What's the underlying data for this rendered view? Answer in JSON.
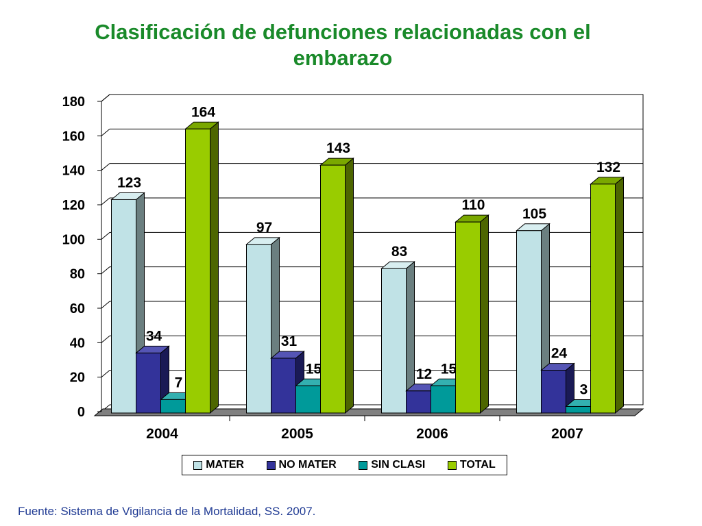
{
  "title_line1": "Clasificación de defunciones relacionadas con el",
  "title_line2": "embarazo",
  "source": "Fuente: Sistema de Vigilancia de la Mortalidad, SS. 2007.",
  "chart_data": {
    "type": "bar",
    "categories": [
      "2004",
      "2005",
      "2006",
      "2007"
    ],
    "series": [
      {
        "name": "MATER",
        "values": [
          123,
          97,
          83,
          105
        ],
        "color": "#c0e2e6",
        "side": "#6b7f80",
        "top": "#d8eef0"
      },
      {
        "name": "NO MATER",
        "values": [
          34,
          31,
          12,
          24
        ],
        "color": "#33339a",
        "side": "#1a1a55",
        "top": "#5555b5"
      },
      {
        "name": "SIN CLASI",
        "values": [
          7,
          15,
          15,
          3
        ],
        "color": "#009a9a",
        "side": "#005a5a",
        "top": "#33b0b0"
      },
      {
        "name": "TOTAL",
        "values": [
          164,
          143,
          110,
          132
        ],
        "color": "#99cc00",
        "side": "#4d6600",
        "top": "#7aa800"
      }
    ],
    "ylim": [
      0,
      180
    ],
    "yticks": [
      0,
      20,
      40,
      60,
      80,
      100,
      120,
      140,
      160,
      180
    ],
    "grid": true,
    "legend_position": "bottom"
  }
}
